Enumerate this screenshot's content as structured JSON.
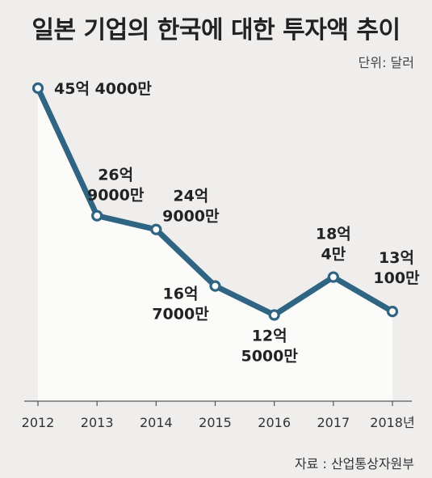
{
  "title": "일본 기업의 한국에 대한 투자액 추이",
  "unit_label": "단위: 달러",
  "source": "자료 : 산업통상자원부",
  "colors": {
    "line": "#2f6583",
    "marker_fill": "#ffffff",
    "area": "#fbfbfa",
    "background": "#efeeed",
    "axis": "#555555"
  },
  "chart_data": {
    "type": "line",
    "title": "일본 기업의 한국에 대한 투자액 추이",
    "unit": "단위: 달러",
    "x": [
      "2012",
      "2013",
      "2014",
      "2015",
      "2016",
      "2017",
      "2018"
    ],
    "x_tick_labels": [
      "2012",
      "2013",
      "2014",
      "2015",
      "2016",
      "2017",
      "2018년"
    ],
    "values": [
      4540000000,
      2690000000,
      2490000000,
      1670000000,
      1250000000,
      1800040000,
      1301000000
    ],
    "data_labels": [
      [
        "45억 4000만"
      ],
      [
        "26억",
        "9000만"
      ],
      [
        "24억",
        "9000만"
      ],
      [
        "16억",
        "7000만"
      ],
      [
        "12억",
        "5000만"
      ],
      [
        "18억",
        "4만"
      ],
      [
        "13억",
        "100만"
      ]
    ],
    "ylim": [
      0,
      4540000000
    ],
    "grid": false,
    "area_fill": true
  }
}
